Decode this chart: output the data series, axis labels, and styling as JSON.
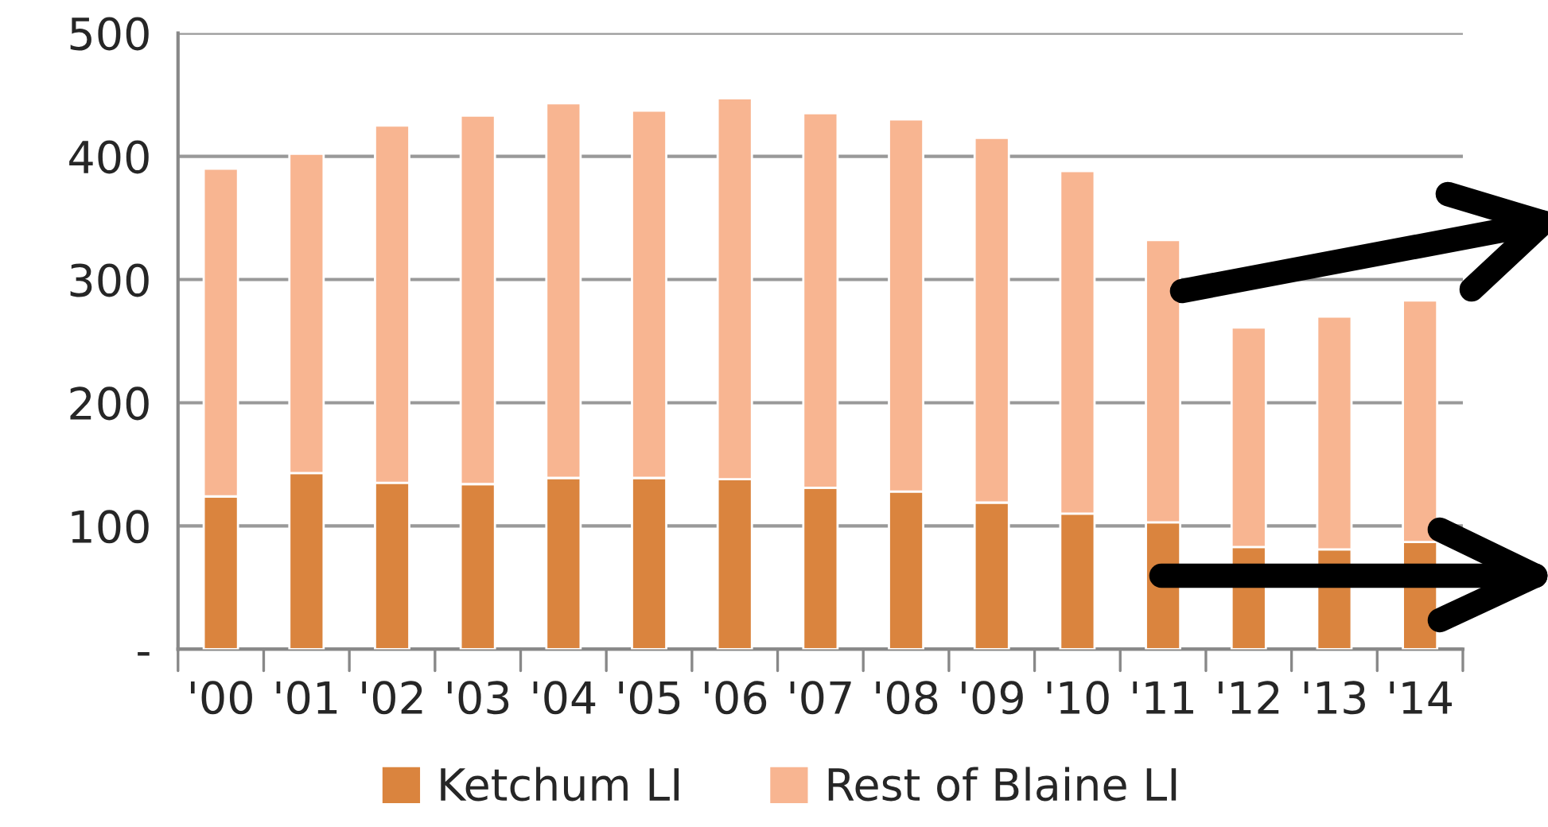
{
  "chart_data": {
    "type": "bar",
    "stacked": true,
    "categories": [
      "'00",
      "'01",
      "'02",
      "'03",
      "'04",
      "'05",
      "'06",
      "'07",
      "'08",
      "'09",
      "'10",
      "'11",
      "'12",
      "'13",
      "'14"
    ],
    "series": [
      {
        "name": "Ketchum LI",
        "color": "#da843e",
        "values": [
          124,
          143,
          135,
          134,
          139,
          139,
          138,
          131,
          128,
          119,
          110,
          103,
          83,
          81,
          87
        ]
      },
      {
        "name": "Rest of Blaine LI",
        "color": "#f8b591",
        "values": [
          266,
          259,
          290,
          299,
          304,
          298,
          309,
          304,
          302,
          296,
          278,
          229,
          178,
          189,
          196
        ]
      }
    ],
    "ylim": [
      0,
      500
    ],
    "yticks": [
      {
        "value": 0,
        "label": "-"
      },
      100,
      200,
      300,
      400,
      500
    ],
    "grid": "y",
    "legend": "bottom"
  }
}
